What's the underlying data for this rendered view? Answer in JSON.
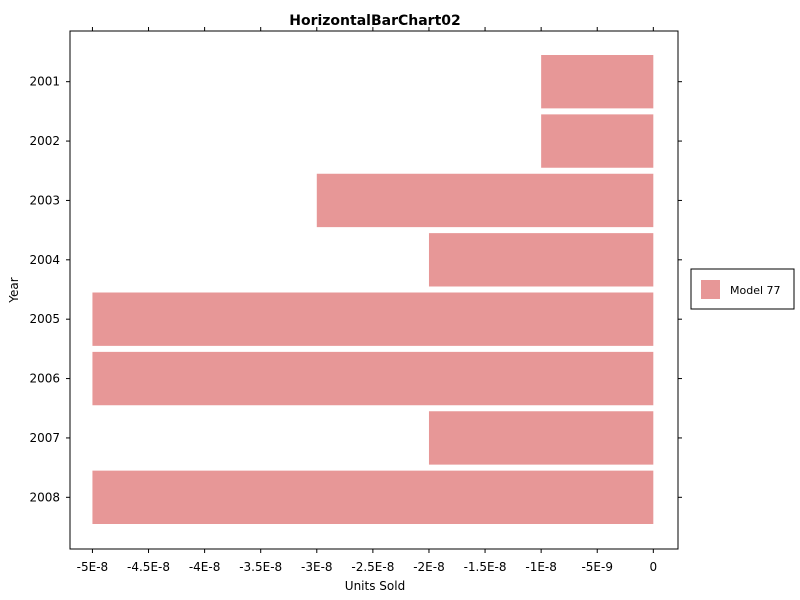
{
  "chart_data": {
    "type": "bar",
    "orientation": "horizontal",
    "title": "HorizontalBarChart02",
    "xlabel": "Units Sold",
    "ylabel": "Year",
    "categories": [
      "2001",
      "2002",
      "2003",
      "2004",
      "2005",
      "2006",
      "2007",
      "2008"
    ],
    "series": [
      {
        "name": "Model 77",
        "values": [
          -1e-08,
          -1e-08,
          -3e-08,
          -2e-08,
          -5e-08,
          -5e-08,
          -2e-08,
          -5e-08
        ]
      }
    ],
    "xlim": [
      -5.2e-08,
      2.2e-09
    ],
    "x_ticks": [
      {
        "value": -5e-08,
        "label": "-5E-8"
      },
      {
        "value": -4.5e-08,
        "label": "-4.5E-8"
      },
      {
        "value": -4e-08,
        "label": "-4E-8"
      },
      {
        "value": -3.5e-08,
        "label": "-3.5E-8"
      },
      {
        "value": -3e-08,
        "label": "-3E-8"
      },
      {
        "value": -2.5e-08,
        "label": "-2.5E-8"
      },
      {
        "value": -2e-08,
        "label": "-2E-8"
      },
      {
        "value": -1.5e-08,
        "label": "-1.5E-8"
      },
      {
        "value": -1e-08,
        "label": "-1E-8"
      },
      {
        "value": -5e-09,
        "label": "-5E-9"
      },
      {
        "value": 0,
        "label": "0"
      }
    ],
    "grid": false,
    "legend": "right",
    "colors": {
      "bar": "#e79797",
      "axis": "#000000",
      "background": "#ffffff"
    }
  }
}
